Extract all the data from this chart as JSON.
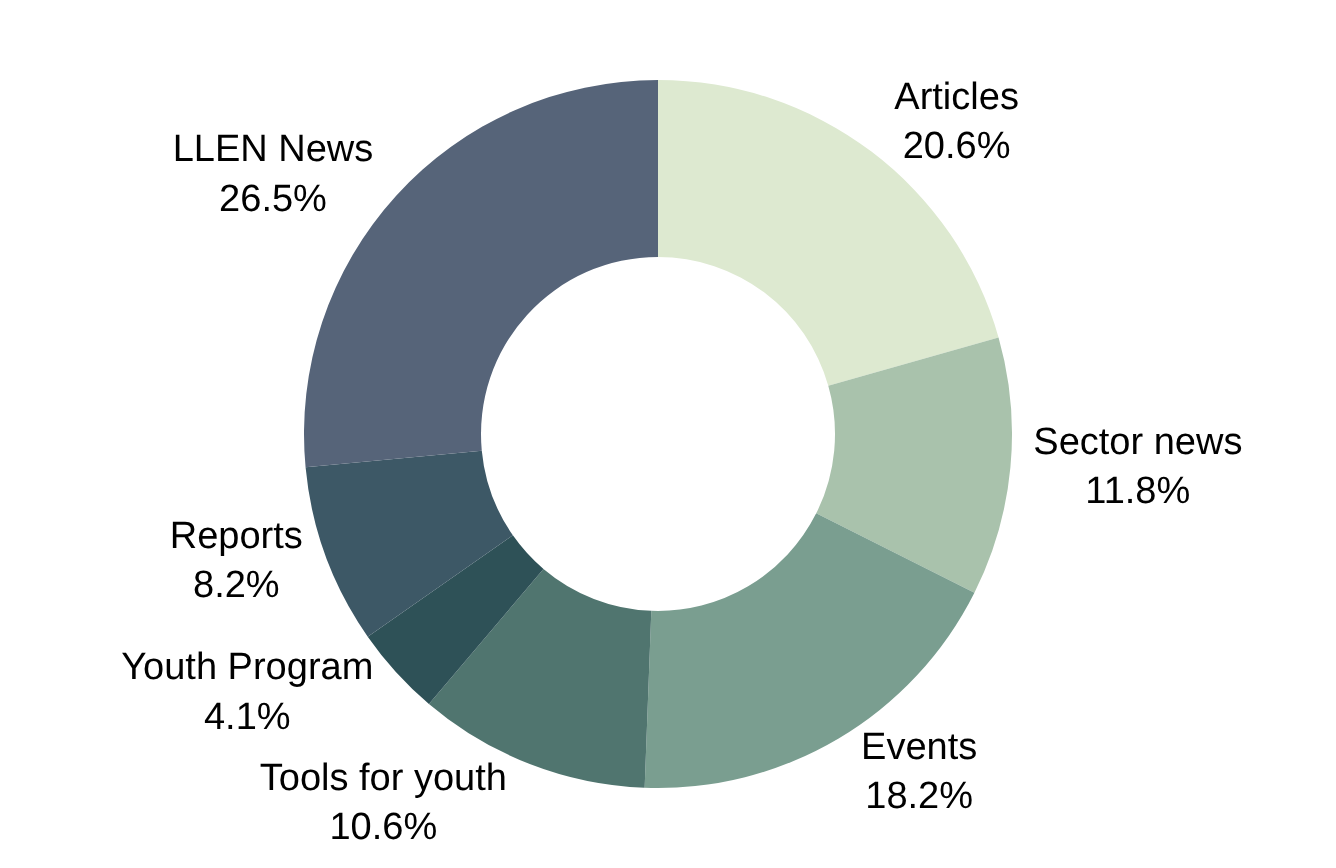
{
  "chart_data": {
    "type": "donut",
    "categories": [
      "Articles",
      "Sector news",
      "Events",
      "Tools for youth",
      "Youth Program",
      "Reports",
      "LLEN News"
    ],
    "values": [
      20.6,
      11.8,
      18.2,
      10.6,
      4.1,
      8.2,
      26.5
    ],
    "value_labels": [
      "20.6%",
      "11.8%",
      "18.2%",
      "10.6%",
      "4.1%",
      "8.2%",
      "26.5%"
    ],
    "colors": [
      "#dde9d0",
      "#a9c2ac",
      "#7a9e90",
      "#50756f",
      "#2e5157",
      "#3d5866",
      "#566479"
    ],
    "legend": false
  }
}
